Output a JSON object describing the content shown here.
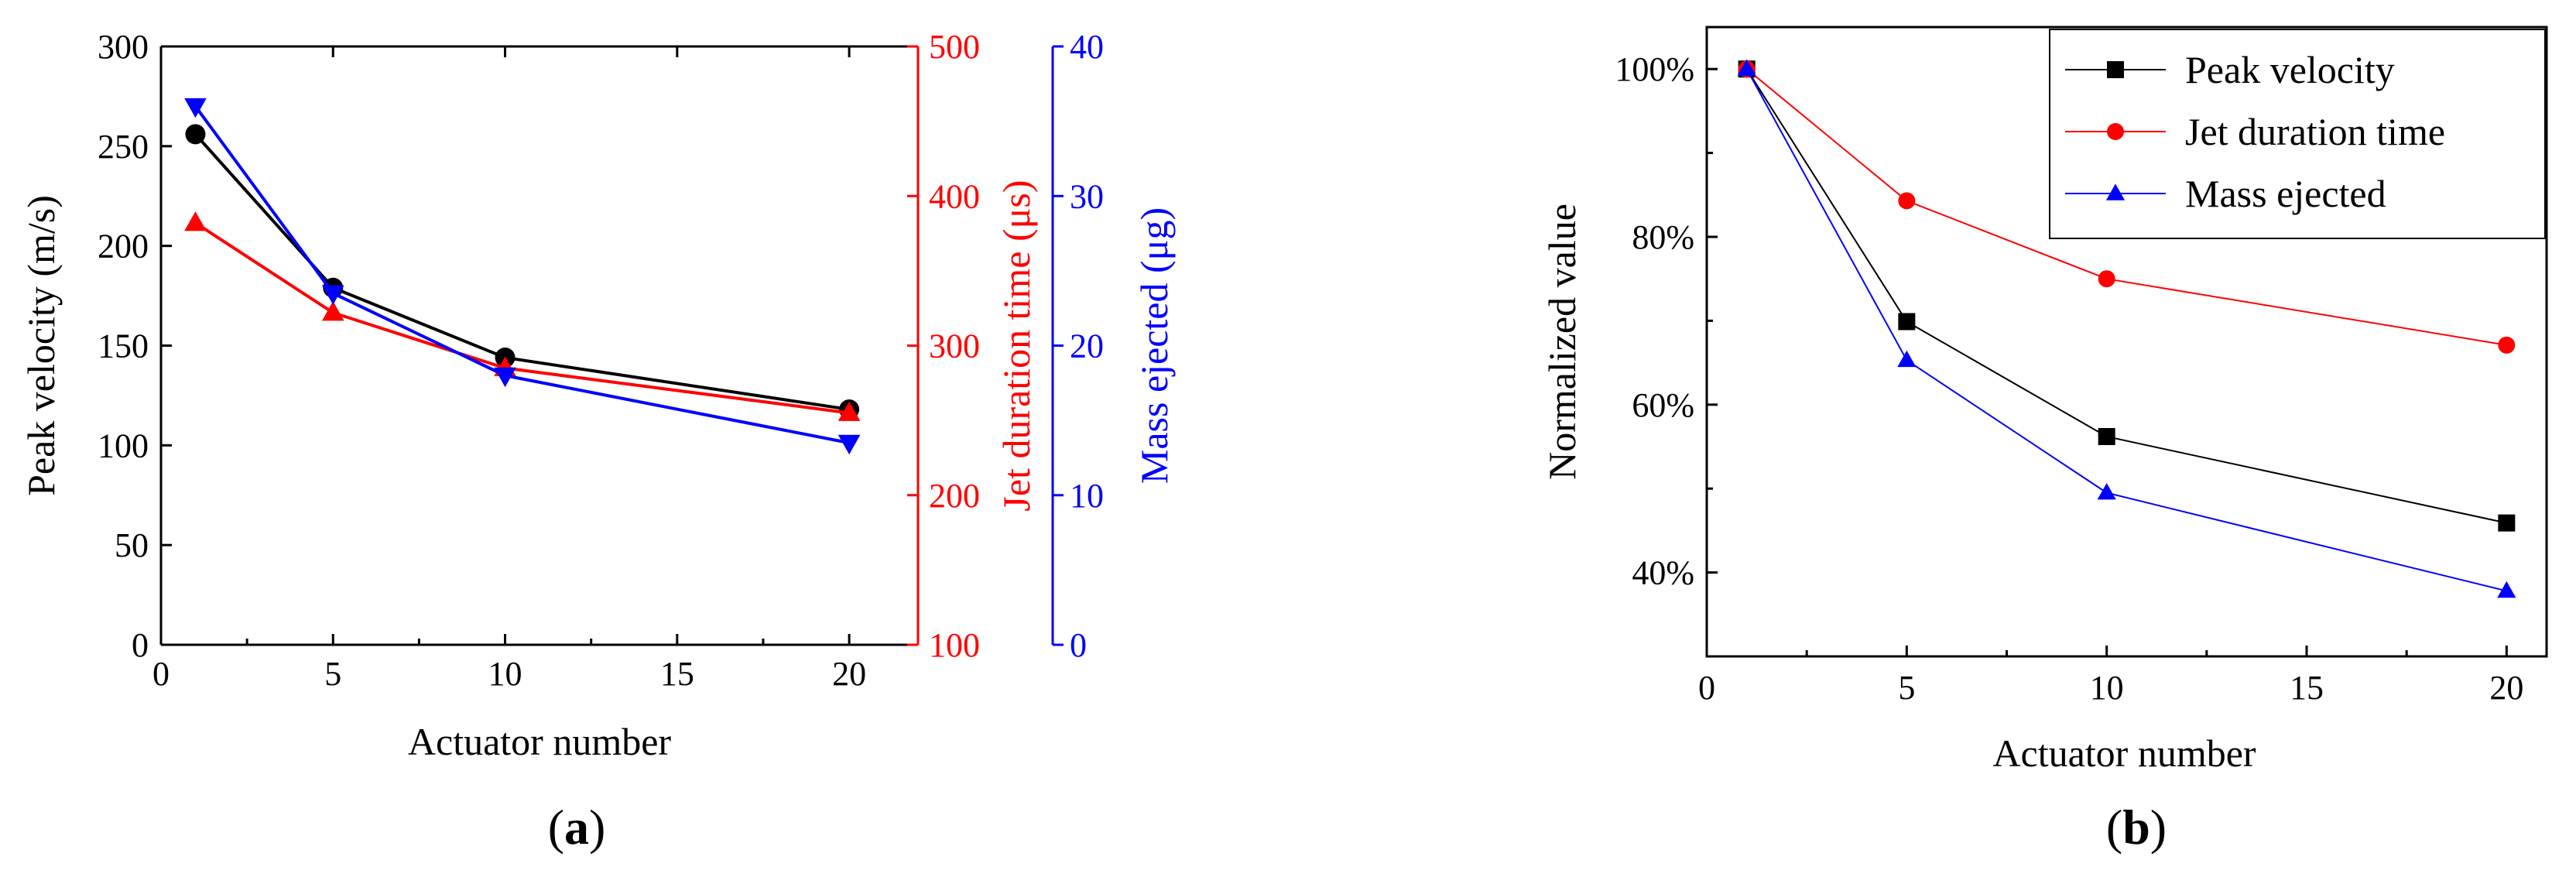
{
  "chart_data": [
    {
      "type": "line",
      "caption": "(a)",
      "caption_letter": "a",
      "x": [
        1,
        5,
        10,
        20
      ],
      "xlabel": "Actuator number",
      "xlim": [
        0,
        22
      ],
      "xticks": [
        "0",
        "5",
        "10",
        "15",
        "20"
      ],
      "y_axes": [
        {
          "id": "left",
          "label": "Peak velocity (m/s)",
          "color": "#000000",
          "lim": [
            0,
            300
          ],
          "ticks": [
            "0",
            "50",
            "100",
            "150",
            "200",
            "250",
            "300"
          ]
        },
        {
          "id": "right1",
          "label": "Jet duration time (μs)",
          "color": "#ff0000",
          "lim": [
            100,
            500
          ],
          "ticks": [
            "100",
            "200",
            "300",
            "400",
            "500"
          ]
        },
        {
          "id": "right2",
          "label": "Mass ejected (μg)",
          "color": "#0000ff",
          "lim": [
            0,
            40
          ],
          "ticks": [
            "0",
            "10",
            "20",
            "30",
            "40"
          ]
        }
      ],
      "series": [
        {
          "axis": "left",
          "color": "#000000",
          "marker": "circle",
          "values": [
            256,
            179,
            144,
            118
          ]
        },
        {
          "axis": "right1",
          "color": "#ff0000",
          "marker": "triangle-up",
          "values": [
            382,
            322,
            285,
            255
          ]
        },
        {
          "axis": "right2",
          "color": "#0000ff",
          "marker": "triangle-down",
          "values": [
            36,
            23.5,
            18,
            13.5
          ]
        }
      ],
      "grid": false
    },
    {
      "type": "line",
      "caption": "(b)",
      "caption_letter": "b",
      "x": [
        1,
        5,
        10,
        20
      ],
      "xlabel": "Actuator number",
      "ylabel": "Normalized value",
      "xlim": [
        0,
        21
      ],
      "ylim": [
        30,
        105
      ],
      "xticks": [
        "0",
        "5",
        "10",
        "15",
        "20"
      ],
      "yticks": [
        "40%",
        "60%",
        "80%",
        "100%"
      ],
      "legend_position": "top-right",
      "series": [
        {
          "name": "Peak velocity",
          "color": "#000000",
          "marker": "square",
          "values": [
            100,
            69.9,
            56.2,
            45.9
          ]
        },
        {
          "name": "Jet duration time",
          "color": "#ff0000",
          "marker": "circle",
          "values": [
            100,
            84.3,
            75.0,
            67.1
          ]
        },
        {
          "name": "Mass ejected",
          "color": "#0000ff",
          "marker": "triangle-up",
          "values": [
            100,
            65.3,
            49.5,
            37.8
          ]
        }
      ],
      "grid": false
    }
  ]
}
